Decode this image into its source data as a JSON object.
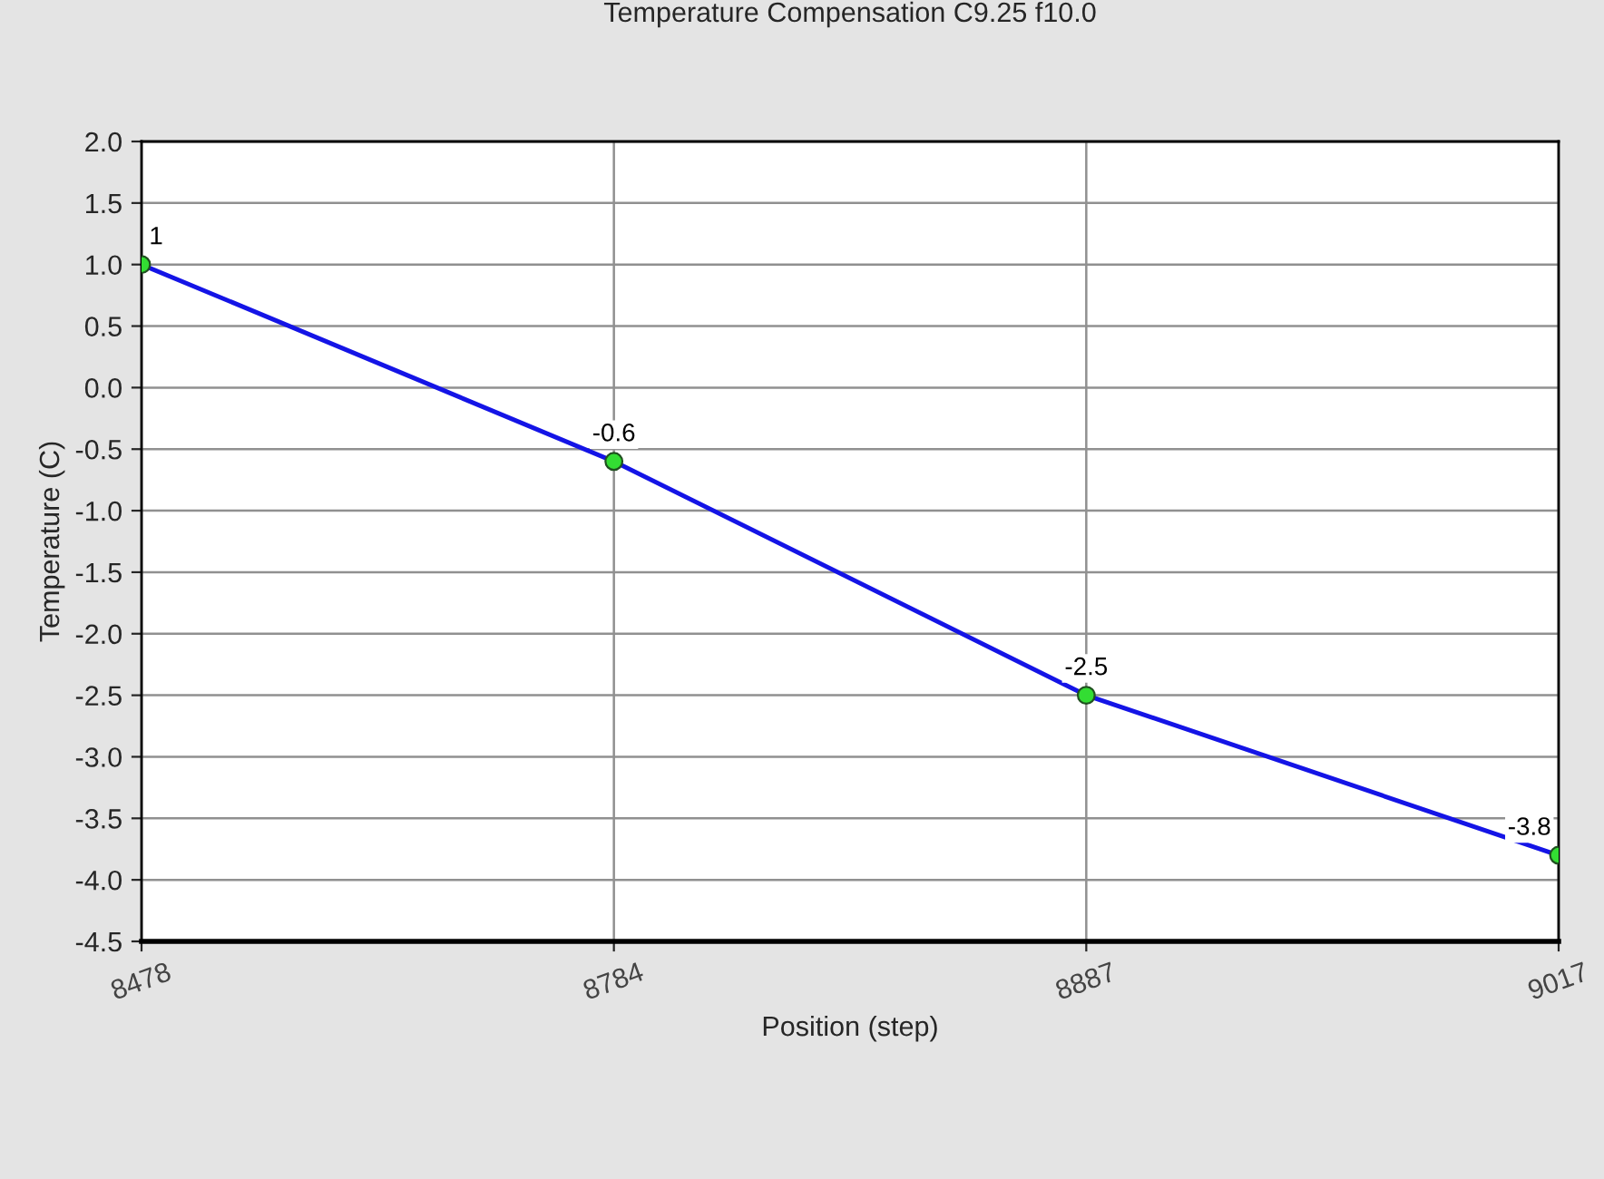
{
  "chart_data": {
    "type": "line",
    "title": "Temperature Compensation C9.25 f10.0",
    "xlabel": "Position (step)",
    "ylabel": "Temperature (C)",
    "categories": [
      "8478",
      "8784",
      "8887",
      "9017"
    ],
    "series": [
      {
        "color": "#1414e6",
        "values": [
          1,
          -0.6,
          -2.5,
          -3.8
        ]
      }
    ],
    "ylim": [
      -4.5,
      2.0
    ],
    "yticks": [
      {
        "value": -4.5,
        "label": "-4.5"
      },
      {
        "value": -4.0,
        "label": "-4.0"
      },
      {
        "value": -3.5,
        "label": "-3.5"
      },
      {
        "value": -3.0,
        "label": "-3.0"
      },
      {
        "value": -2.5,
        "label": "-2.5"
      },
      {
        "value": -2.0,
        "label": "-2.0"
      },
      {
        "value": -1.5,
        "label": "-1.5"
      },
      {
        "value": -1.0,
        "label": "-1.0"
      },
      {
        "value": -0.5,
        "label": "-0.5"
      },
      {
        "value": 0.0,
        "label": "0.0"
      },
      {
        "value": 0.5,
        "label": "0.5"
      },
      {
        "value": 1.0,
        "label": "1.0"
      },
      {
        "value": 1.5,
        "label": "1.5"
      },
      {
        "value": 2.0,
        "label": "2.0"
      }
    ],
    "grid": true,
    "marker": "circle",
    "line_style": "solid",
    "data_labels": true,
    "legend": false
  }
}
